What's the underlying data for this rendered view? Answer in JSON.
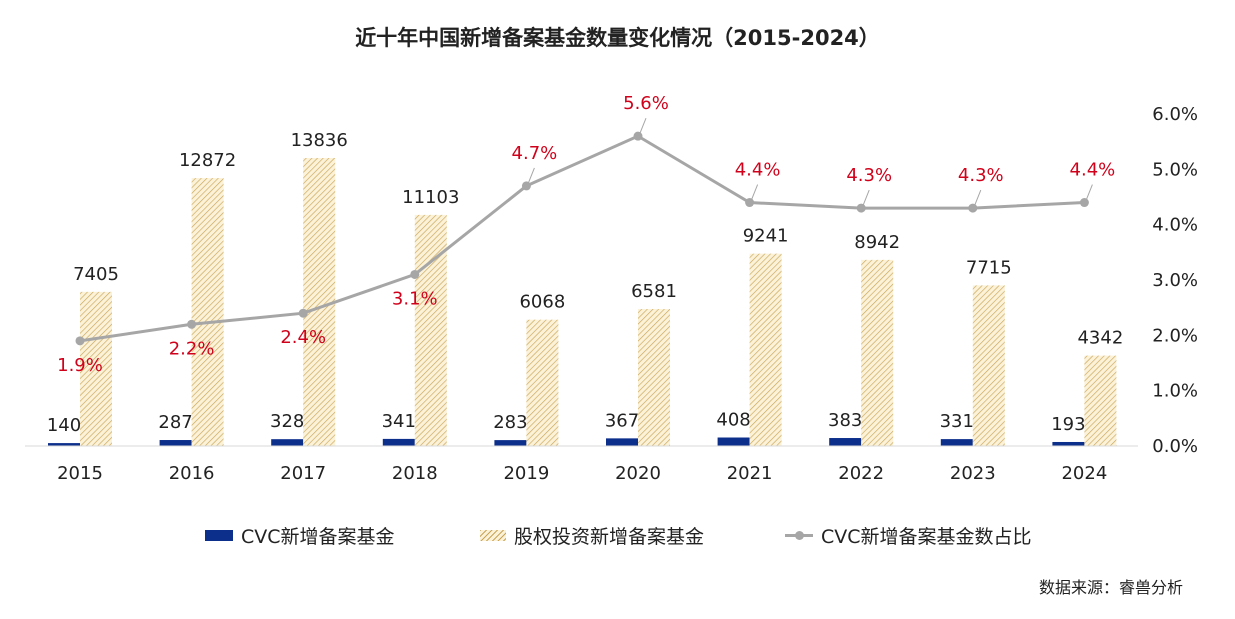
{
  "chart_data": {
    "type": "bar",
    "title": "近十年中国新增备案基金数量变化情况（2015-2024）",
    "categories": [
      "2015",
      "2016",
      "2017",
      "2018",
      "2019",
      "2020",
      "2021",
      "2022",
      "2023",
      "2024"
    ],
    "series": [
      {
        "name": "CVC新增备案基金",
        "type": "bar",
        "axis": "left",
        "color": "#0d2f8c",
        "values": [
          140,
          287,
          328,
          341,
          283,
          367,
          408,
          383,
          331,
          193
        ]
      },
      {
        "name": "股权投资新增备案基金",
        "type": "bar",
        "axis": "left",
        "color": "#e8c98a",
        "pattern": "diagonal-hatch",
        "values": [
          7405,
          12872,
          13836,
          11103,
          6068,
          6581,
          9241,
          8942,
          7715,
          4342
        ]
      },
      {
        "name": "CVC新增备案基金数占比",
        "type": "line",
        "axis": "right",
        "color": "#a6a6a6",
        "values": [
          1.9,
          2.2,
          2.4,
          3.1,
          4.7,
          5.6,
          4.4,
          4.3,
          4.3,
          4.4
        ],
        "labels": [
          "1.9%",
          "2.2%",
          "2.4%",
          "3.1%",
          "4.7%",
          "5.6%",
          "4.4%",
          "4.3%",
          "4.3%",
          "4.4%"
        ],
        "label_color": "#d0021b"
      }
    ],
    "y_left_range": [
      0,
      15000
    ],
    "y_right_range": [
      0,
      6.0
    ],
    "y_right_ticks": [
      "6.0%",
      "5.0%",
      "4.0%",
      "3.0%",
      "2.0%",
      "1.0%",
      "0.0%"
    ],
    "y_right_tick_values": [
      6,
      5,
      4,
      3,
      2,
      1,
      0
    ],
    "grid": false,
    "legend_position": "bottom"
  },
  "legend": {
    "items": [
      "CVC新增备案基金",
      "股权投资新增备案基金",
      "CVC新增备案基金数占比"
    ]
  },
  "source_note": "数据来源：睿兽分析"
}
